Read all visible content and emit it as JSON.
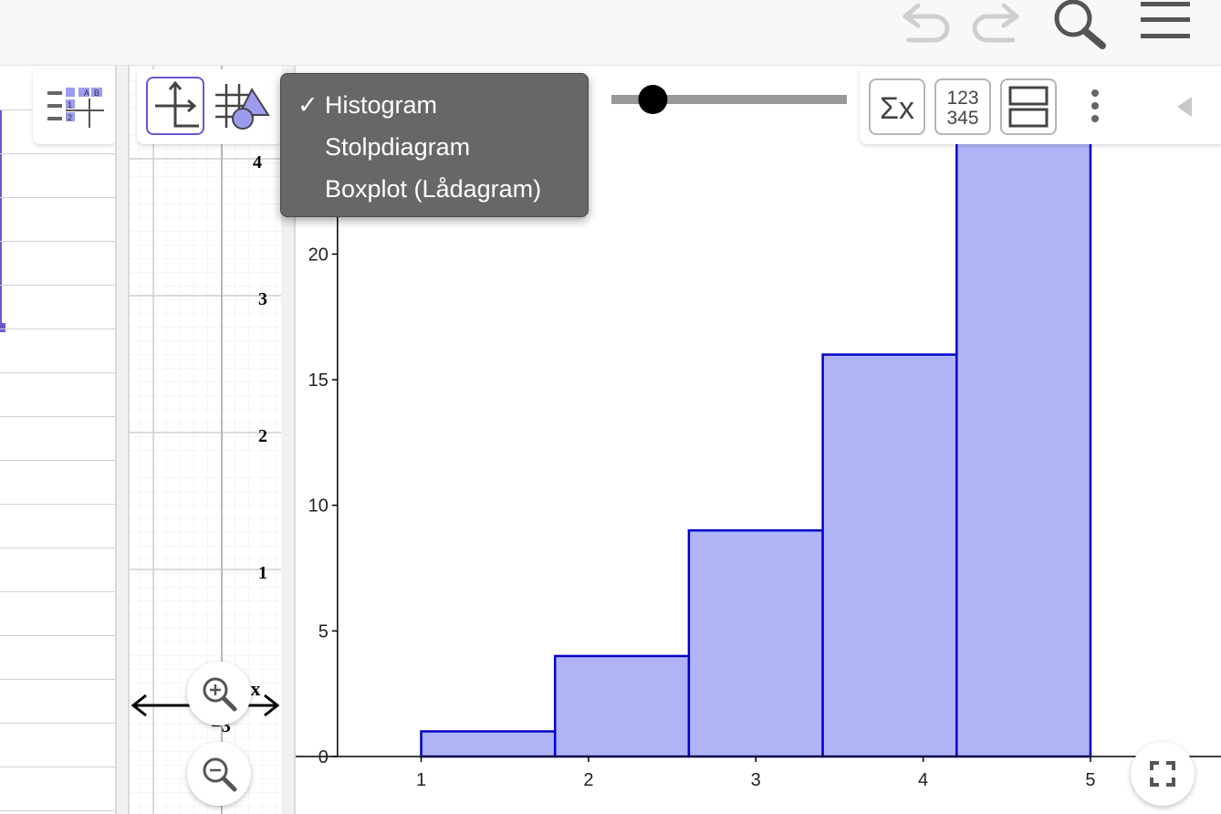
{
  "toolbar_icons": [
    "undo-icon",
    "redo-icon",
    "search-icon",
    "menu-icon"
  ],
  "spreadsheet": {
    "tool_icon": "spreadsheet-icon",
    "column_a": "A",
    "column_b": "B",
    "row_1": "1",
    "row_2": "2"
  },
  "graphics_view": {
    "tool_icons": [
      "move-graphics-icon",
      "graph-style-icon"
    ],
    "y_ticks": [
      "4",
      "3",
      "2",
      "1"
    ],
    "x_axis_label": "x",
    "x_tick": "−3"
  },
  "chart_type_menu": {
    "check": "✓",
    "items": [
      {
        "label": "Histogram",
        "selected": true
      },
      {
        "label": "Stolpdiagram",
        "selected": false
      },
      {
        "label": "Boxplot (Lådagram)",
        "selected": false
      }
    ]
  },
  "stats_toolbar": {
    "buttons": [
      "sigma-x-icon",
      "data-table-icon",
      "two-panel-layout-icon"
    ],
    "sigma_label": "Σx",
    "table_label_top": "123",
    "table_label_bottom": "345",
    "more_icon": "more-vertical-icon",
    "collapse_icon": "triangle-left-icon"
  },
  "slider": {
    "value": 0.18
  },
  "chart_data": {
    "type": "bar",
    "categories": [
      "1-1.8",
      "1.8-2.6",
      "2.6-3.4",
      "3.4-4.2",
      "4.2-5"
    ],
    "bin_edges": [
      1,
      1.8,
      2.6,
      3.4,
      4.2,
      5
    ],
    "values": [
      1,
      4,
      9,
      16,
      25
    ],
    "x_ticks": [
      "1",
      "2",
      "3",
      "4",
      "5"
    ],
    "y_ticks": [
      "0",
      "5",
      "10",
      "15",
      "20"
    ],
    "xlim": [
      0.25,
      5.78
    ],
    "ylim": [
      0,
      27.5
    ],
    "grid": false,
    "bar_fill": "#b1b3f7",
    "bar_stroke": "#0000c8"
  },
  "zoom": {
    "zoom_in_icon": "zoom-in-icon",
    "zoom_out_icon": "zoom-out-icon",
    "fullscreen_icon": "fullscreen-icon"
  }
}
